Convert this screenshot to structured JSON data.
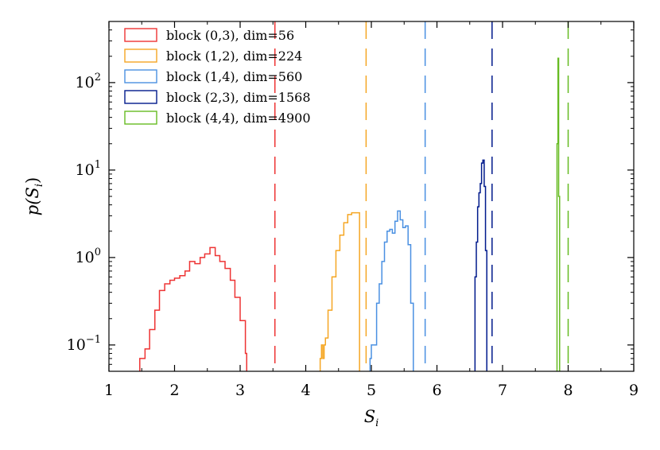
{
  "chart_data": {
    "type": "histogram",
    "title": "",
    "xlabel": "S_i",
    "ylabel": "p(S_i)",
    "xlabel_text": {
      "main": "S",
      "sub": "i"
    },
    "ylabel_text": {
      "prefix": "p(",
      "main": "S",
      "sub": "i",
      "suffix": ")"
    },
    "xlim": [
      1,
      9
    ],
    "ylim": [
      0.05,
      500
    ],
    "yscale": "log",
    "xticks": [
      "1",
      "2",
      "3",
      "4",
      "5",
      "6",
      "7",
      "8",
      "9"
    ],
    "yticks": [
      {
        "value": 0.1,
        "base": "10",
        "exp": "−1"
      },
      {
        "value": 1,
        "base": "10",
        "exp": "0"
      },
      {
        "value": 10,
        "base": "10",
        "exp": "1"
      },
      {
        "value": 100,
        "base": "10",
        "exp": "2"
      }
    ],
    "legend_position": "top-left",
    "series": [
      {
        "name": "block (0,3), dim=56",
        "color": "#ee3333",
        "dashed_line_x": 3.53,
        "edges": [
          1.47,
          1.55,
          1.62,
          1.7,
          1.77,
          1.85,
          1.93,
          2.0,
          2.08,
          2.16,
          2.23,
          2.31,
          2.39,
          2.46,
          2.54,
          2.62,
          2.69,
          2.77,
          2.85,
          2.92,
          3.0,
          3.08,
          3.1
        ],
        "values": [
          0.07,
          0.09,
          0.15,
          0.25,
          0.42,
          0.5,
          0.55,
          0.58,
          0.62,
          0.7,
          0.9,
          0.85,
          1.0,
          1.1,
          1.3,
          1.05,
          0.9,
          0.75,
          0.55,
          0.35,
          0.19,
          0.08
        ]
      },
      {
        "name": "block (1,2), dim=224",
        "color": "#f5a623",
        "dashed_line_x": 4.92,
        "edges": [
          4.22,
          4.24,
          4.26,
          4.28,
          4.3,
          4.34,
          4.4,
          4.46,
          4.52,
          4.58,
          4.64,
          4.7,
          4.82
        ],
        "values": [
          0.07,
          0.1,
          0.07,
          0.1,
          0.12,
          0.25,
          0.6,
          1.2,
          1.8,
          2.5,
          3.1,
          3.25
        ]
      },
      {
        "name": "block (1,4), dim=560",
        "color": "#4a90e2",
        "dashed_line_x": 5.82,
        "edges": [
          4.98,
          5.0,
          5.04,
          5.08,
          5.12,
          5.16,
          5.2,
          5.24,
          5.28,
          5.32,
          5.36,
          5.4,
          5.44,
          5.48,
          5.52,
          5.56,
          5.6,
          5.64
        ],
        "values": [
          0.07,
          0.1,
          0.1,
          0.3,
          0.5,
          0.9,
          1.5,
          2.0,
          2.1,
          1.9,
          2.6,
          3.4,
          2.7,
          2.2,
          2.3,
          1.4,
          0.3
        ]
      },
      {
        "name": "block (2,3), dim=1568",
        "color": "#001a8c",
        "dashed_line_x": 6.84,
        "edges": [
          6.58,
          6.6,
          6.62,
          6.64,
          6.66,
          6.68,
          6.7,
          6.72,
          6.74,
          6.76
        ],
        "values": [
          0.6,
          1.5,
          3.8,
          5.5,
          7.0,
          12.0,
          13.0,
          6.5,
          1.2
        ]
      },
      {
        "name": "block (4,4), dim=4900",
        "color": "#66bb22",
        "dashed_line_x": 8.0,
        "edges": [
          7.83,
          7.845,
          7.855,
          7.87
        ],
        "values": [
          20,
          190,
          5
        ]
      }
    ]
  }
}
